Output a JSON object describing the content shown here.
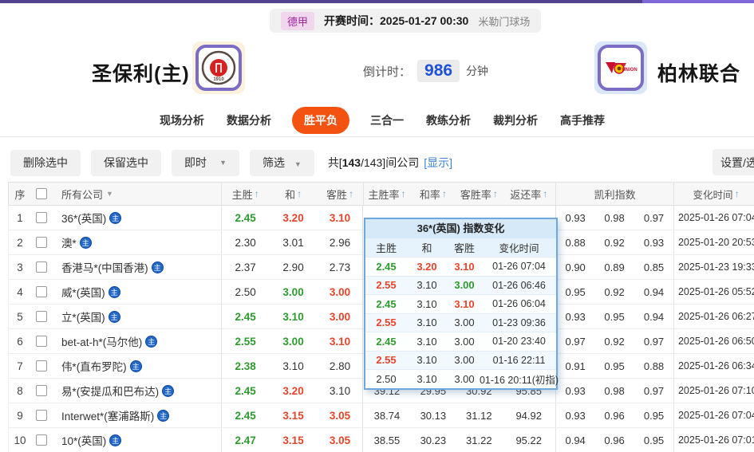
{
  "top": {
    "league": "德甲",
    "kickoff_label": "开赛时间：",
    "kickoff_time": "2025-01-27 00:30",
    "venue": "米勒门球场"
  },
  "match": {
    "home_name": "圣保利(主)",
    "away_name": "柏林联合",
    "countdown_label": "倒计时：",
    "countdown_value": "986",
    "countdown_unit": "分钟"
  },
  "tabs": [
    {
      "label": "现场分析",
      "active": false
    },
    {
      "label": "数据分析",
      "active": false
    },
    {
      "label": "胜平负",
      "active": true
    },
    {
      "label": "三合一",
      "active": false
    },
    {
      "label": "教练分析",
      "active": false
    },
    {
      "label": "裁判分析",
      "active": false
    },
    {
      "label": "高手推荐",
      "active": false
    }
  ],
  "toolbar": {
    "delete_label": "删除选中",
    "keep_label": "保留选中",
    "instant_label": "即时",
    "filter_label": "筛选",
    "count_prefix": "共[",
    "count_strong": "143",
    "count_suffix": "/143]间公司",
    "show_link": "[显示]",
    "settings_label": "设置/选"
  },
  "table": {
    "headers": {
      "seq": "序",
      "company": "所有公司",
      "home_win": "主胜",
      "draw": "和",
      "away_win": "客胜",
      "home_rate": "主胜率",
      "draw_rate": "和率",
      "away_rate": "客胜率",
      "return_rate": "返还率",
      "kelly": "凯利指数",
      "change_time": "变化时间",
      "sort_arrow": "↑",
      "company_caret": "▼"
    },
    "home_badge": "主",
    "rows": [
      {
        "no": "1",
        "company": "36*(英国)",
        "odds": [
          {
            "v": "2.45",
            "c": "d"
          },
          {
            "v": "3.20",
            "c": "u"
          },
          {
            "v": "3.10",
            "c": "u"
          }
        ],
        "rates": [
          "",
          "",
          "",
          ""
        ],
        "kelly": [
          "0.93",
          "0.98",
          "0.97"
        ],
        "time": "2025-01-26 07:04"
      },
      {
        "no": "2",
        "company": "澳*",
        "odds": [
          {
            "v": "2.30",
            "c": "k"
          },
          {
            "v": "3.01",
            "c": "k"
          },
          {
            "v": "2.96",
            "c": "k"
          }
        ],
        "rates": [
          "",
          "",
          "",
          ""
        ],
        "kelly": [
          "0.88",
          "0.92",
          "0.93"
        ],
        "time": "2025-01-20 20:53"
      },
      {
        "no": "3",
        "company": "香港马*(中国香港)",
        "odds": [
          {
            "v": "2.37",
            "c": "k"
          },
          {
            "v": "2.90",
            "c": "k"
          },
          {
            "v": "2.73",
            "c": "k"
          }
        ],
        "rates": [
          "",
          "",
          "",
          ""
        ],
        "kelly": [
          "0.90",
          "0.89",
          "0.85"
        ],
        "time": "2025-01-23 19:33"
      },
      {
        "no": "4",
        "company": "威*(英国)",
        "odds": [
          {
            "v": "2.50",
            "c": "k"
          },
          {
            "v": "3.00",
            "c": "d"
          },
          {
            "v": "3.00",
            "c": "u"
          }
        ],
        "rates": [
          "",
          "",
          "",
          ""
        ],
        "kelly": [
          "0.95",
          "0.92",
          "0.94"
        ],
        "time": "2025-01-26 05:52"
      },
      {
        "no": "5",
        "company": "立*(英国)",
        "odds": [
          {
            "v": "2.45",
            "c": "d"
          },
          {
            "v": "3.10",
            "c": "d"
          },
          {
            "v": "3.00",
            "c": "u"
          }
        ],
        "rates": [
          "",
          "",
          "",
          ""
        ],
        "kelly": [
          "0.93",
          "0.95",
          "0.94"
        ],
        "time": "2025-01-26 06:27"
      },
      {
        "no": "6",
        "company": "bet-at-h*(马尔他)",
        "odds": [
          {
            "v": "2.55",
            "c": "d"
          },
          {
            "v": "3.00",
            "c": "d"
          },
          {
            "v": "3.10",
            "c": "u"
          }
        ],
        "rates": [
          "",
          "",
          "",
          ""
        ],
        "kelly": [
          "0.97",
          "0.92",
          "0.97"
        ],
        "time": "2025-01-26 06:50"
      },
      {
        "no": "7",
        "company": "伟*(直布罗陀)",
        "odds": [
          {
            "v": "2.38",
            "c": "d"
          },
          {
            "v": "3.10",
            "c": "k"
          },
          {
            "v": "2.80",
            "c": "k"
          }
        ],
        "rates": [
          "",
          "",
          "",
          ""
        ],
        "kelly": [
          "0.91",
          "0.95",
          "0.88"
        ],
        "time": "2025-01-26 06:34"
      },
      {
        "no": "8",
        "company": "易*(安提瓜和巴布达)",
        "odds": [
          {
            "v": "2.45",
            "c": "d"
          },
          {
            "v": "3.20",
            "c": "u"
          },
          {
            "v": "3.10",
            "c": "k"
          }
        ],
        "rates": [
          "39.12",
          "29.95",
          "30.92",
          "95.85"
        ],
        "kelly": [
          "0.93",
          "0.98",
          "0.97"
        ],
        "time": "2025-01-26 07:10"
      },
      {
        "no": "9",
        "company": "Interwet*(塞浦路斯)",
        "odds": [
          {
            "v": "2.45",
            "c": "d"
          },
          {
            "v": "3.15",
            "c": "u"
          },
          {
            "v": "3.05",
            "c": "u"
          }
        ],
        "rates": [
          "38.74",
          "30.13",
          "31.12",
          "94.92"
        ],
        "kelly": [
          "0.93",
          "0.96",
          "0.95"
        ],
        "time": "2025-01-26 07:04"
      },
      {
        "no": "10",
        "company": "10*(英国)",
        "odds": [
          {
            "v": "2.47",
            "c": "d"
          },
          {
            "v": "3.15",
            "c": "u"
          },
          {
            "v": "3.05",
            "c": "u"
          }
        ],
        "rates": [
          "38.55",
          "30.23",
          "31.22",
          "95.22"
        ],
        "kelly": [
          "0.94",
          "0.96",
          "0.95"
        ],
        "time": "2025-01-26 07:01"
      }
    ]
  },
  "popup": {
    "title": "36*(英国) 指数变化",
    "headers": [
      "主胜",
      "和",
      "客胜",
      "变化时间"
    ],
    "rows": [
      {
        "vals": [
          {
            "v": "2.45",
            "c": "d"
          },
          {
            "v": "3.20",
            "c": "u"
          },
          {
            "v": "3.10",
            "c": "u"
          }
        ],
        "time": "01-26 07:04"
      },
      {
        "vals": [
          {
            "v": "2.55",
            "c": "u"
          },
          {
            "v": "3.10",
            "c": "k"
          },
          {
            "v": "3.00",
            "c": "d"
          }
        ],
        "time": "01-26 06:46"
      },
      {
        "vals": [
          {
            "v": "2.45",
            "c": "d"
          },
          {
            "v": "3.10",
            "c": "k"
          },
          {
            "v": "3.10",
            "c": "u"
          }
        ],
        "time": "01-26 06:04"
      },
      {
        "vals": [
          {
            "v": "2.55",
            "c": "u"
          },
          {
            "v": "3.10",
            "c": "k"
          },
          {
            "v": "3.00",
            "c": "k"
          }
        ],
        "time": "01-23 09:36"
      },
      {
        "vals": [
          {
            "v": "2.45",
            "c": "d"
          },
          {
            "v": "3.10",
            "c": "k"
          },
          {
            "v": "3.00",
            "c": "k"
          }
        ],
        "time": "01-20 23:40"
      },
      {
        "vals": [
          {
            "v": "2.55",
            "c": "u"
          },
          {
            "v": "3.10",
            "c": "k"
          },
          {
            "v": "3.00",
            "c": "k"
          }
        ],
        "time": "01-16 22:11"
      },
      {
        "vals": [
          {
            "v": "2.50",
            "c": "k"
          },
          {
            "v": "3.10",
            "c": "k"
          },
          {
            "v": "3.00",
            "c": "k"
          }
        ],
        "time": "01-16 20:11(初指)"
      }
    ]
  },
  "colors": {
    "odds_up": "#e8442a",
    "odds_down": "#2e9b2e",
    "tab_active": "#f35210",
    "link": "#3b82d4",
    "countdown": "#1f52d9",
    "top_strip_dark": "#52418c",
    "top_strip_light": "#8168d8"
  }
}
